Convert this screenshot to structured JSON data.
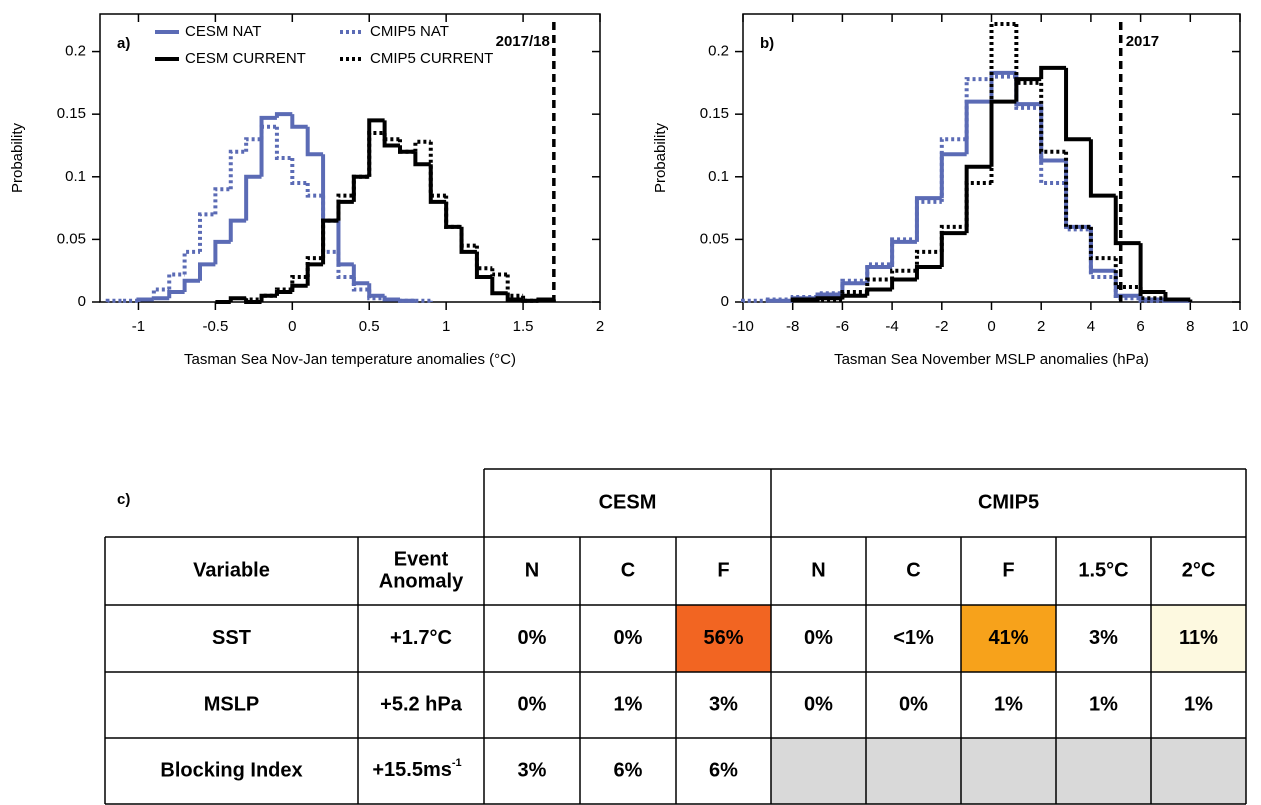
{
  "chart_data": [
    {
      "type": "histogram",
      "panel_label": "a)",
      "xlabel": "Tasman Sea Nov-Jan temperature anomalies (°C)",
      "ylabel": "Probability",
      "xlim": [
        -1.25,
        2
      ],
      "ylim": [
        0,
        0.23
      ],
      "xticks": [
        -1,
        -0.5,
        0,
        0.5,
        1,
        1.5,
        2
      ],
      "yticks": [
        0,
        0.05,
        0.1,
        0.15,
        0.2
      ],
      "legend": true,
      "event": {
        "value": 1.7,
        "label": "2017/18"
      },
      "series": [
        {
          "name": "CESM NAT",
          "color": "#5b6bb5",
          "linestyle": "solid",
          "bins": [
            -1.0,
            -0.9,
            -0.8,
            -0.7,
            -0.6,
            -0.5,
            -0.4,
            -0.3,
            -0.2,
            -0.1,
            0,
            0.1,
            0.2,
            0.3,
            0.4,
            0.5,
            0.6,
            0.7,
            0.8
          ],
          "values": [
            0.002,
            0.003,
            0.008,
            0.017,
            0.03,
            0.048,
            0.065,
            0.1,
            0.147,
            0.15,
            0.14,
            0.118,
            0.065,
            0.03,
            0.015,
            0.005,
            0.002,
            0.001
          ]
        },
        {
          "name": "CMIP5 NAT",
          "color": "#5b6bb5",
          "linestyle": "dotted",
          "bins": [
            -1.2,
            -1.1,
            -1.0,
            -0.9,
            -0.8,
            -0.7,
            -0.6,
            -0.5,
            -0.4,
            -0.3,
            -0.2,
            -0.1,
            0,
            0.1,
            0.2,
            0.3,
            0.4,
            0.5,
            0.6,
            0.7,
            0.8,
            0.9
          ],
          "values": [
            0.001,
            0.001,
            0.002,
            0.01,
            0.022,
            0.04,
            0.07,
            0.09,
            0.12,
            0.13,
            0.14,
            0.115,
            0.095,
            0.085,
            0.04,
            0.02,
            0.01,
            0.003,
            0.002,
            0.001,
            0.001
          ]
        },
        {
          "name": "CESM CURRENT",
          "color": "#000000",
          "linestyle": "solid",
          "bins": [
            -0.5,
            -0.4,
            -0.3,
            -0.2,
            -0.1,
            0,
            0.1,
            0.2,
            0.3,
            0.4,
            0.5,
            0.6,
            0.7,
            0.8,
            0.9,
            1.0,
            1.1,
            1.2,
            1.3,
            1.4,
            1.5,
            1.6,
            1.7
          ],
          "values": [
            0,
            0.003,
            0,
            0.005,
            0.008,
            0.013,
            0.03,
            0.065,
            0.08,
            0.1,
            0.145,
            0.125,
            0.12,
            0.11,
            0.08,
            0.06,
            0.04,
            0.02,
            0.007,
            0.002,
            0.001,
            0.002
          ]
        },
        {
          "name": "CMIP5 CURRENT",
          "color": "#000000",
          "linestyle": "dotted",
          "bins": [
            -0.3,
            -0.2,
            -0.1,
            0,
            0.1,
            0.2,
            0.3,
            0.4,
            0.5,
            0.6,
            0.7,
            0.8,
            0.9,
            1.0,
            1.1,
            1.2,
            1.3,
            1.4,
            1.5,
            1.6
          ],
          "values": [
            0.002,
            0.005,
            0.01,
            0.02,
            0.035,
            0.065,
            0.085,
            0.1,
            0.135,
            0.13,
            0.12,
            0.128,
            0.085,
            0.06,
            0.045,
            0.027,
            0.022,
            0.005,
            0.001
          ]
        }
      ]
    },
    {
      "type": "histogram",
      "panel_label": "b)",
      "xlabel": "Tasman Sea November MSLP anomalies (hPa)",
      "ylabel": "Probability",
      "xlim": [
        -10,
        10
      ],
      "ylim": [
        0,
        0.23
      ],
      "xticks": [
        -10,
        -8,
        -6,
        -4,
        -2,
        0,
        2,
        4,
        6,
        8,
        10
      ],
      "yticks": [
        0,
        0.05,
        0.1,
        0.15,
        0.2
      ],
      "legend": false,
      "event": {
        "value": 5.2,
        "label": "2017"
      },
      "series": [
        {
          "color": "#5b6bb5",
          "linestyle": "solid",
          "bins": [
            -9,
            -8,
            -7,
            -6,
            -5,
            -4,
            -3,
            -2,
            -1,
            0,
            1,
            2,
            3,
            4,
            5,
            6,
            7,
            8
          ],
          "values": [
            0.001,
            0.003,
            0.006,
            0.015,
            0.028,
            0.048,
            0.083,
            0.118,
            0.16,
            0.183,
            0.158,
            0.113,
            0.06,
            0.025,
            0.005,
            0.002,
            0.001
          ]
        },
        {
          "color": "#5b6bb5",
          "linestyle": "dotted",
          "bins": [
            -10,
            -9,
            -8,
            -7,
            -6,
            -5,
            -4,
            -3,
            -2,
            -1,
            0,
            1,
            2,
            3,
            4,
            5,
            6,
            7
          ],
          "values": [
            0.001,
            0.002,
            0.004,
            0.007,
            0.017,
            0.03,
            0.05,
            0.08,
            0.13,
            0.178,
            0.18,
            0.155,
            0.095,
            0.058,
            0.02,
            0.003,
            0.001
          ]
        },
        {
          "color": "#000000",
          "linestyle": "solid",
          "bins": [
            -8,
            -7,
            -6,
            -5,
            -4,
            -3,
            -2,
            -1,
            0,
            1,
            2,
            3,
            4,
            5,
            6,
            7,
            8
          ],
          "values": [
            0.002,
            0.003,
            0.005,
            0.01,
            0.018,
            0.028,
            0.055,
            0.108,
            0.16,
            0.178,
            0.187,
            0.13,
            0.085,
            0.047,
            0.008,
            0.002
          ]
        },
        {
          "color": "#000000",
          "linestyle": "dotted",
          "bins": [
            -7,
            -6,
            -5,
            -4,
            -3,
            -2,
            -1,
            0,
            1,
            2,
            3,
            4,
            5,
            6,
            7
          ],
          "values": [
            0.002,
            0.008,
            0.018,
            0.025,
            0.04,
            0.06,
            0.095,
            0.222,
            0.175,
            0.12,
            0.06,
            0.035,
            0.012,
            0.003
          ]
        }
      ]
    }
  ],
  "table": {
    "label": "c)",
    "row_headers": [
      "Variable",
      [
        "Event",
        "Anomaly"
      ]
    ],
    "groups": [
      {
        "name": "CESM",
        "columns": [
          "N",
          "C",
          "F"
        ]
      },
      {
        "name": "CMIP5",
        "columns": [
          "N",
          "C",
          "F",
          "1.5°C",
          "2°C"
        ]
      }
    ],
    "empty_fill": "#d9d9d9",
    "rows": [
      {
        "cells": [
          "SST",
          "+1.7°C",
          "0%",
          "0%",
          "56%",
          "0%",
          "<1%",
          "41%",
          "3%",
          "11%"
        ],
        "fills": [
          null,
          null,
          null,
          null,
          "#f26522",
          null,
          null,
          "#f7a21b",
          null,
          "#fdf9e0"
        ]
      },
      {
        "cells": [
          "MSLP",
          "+5.2 hPa",
          "0%",
          "1%",
          "3%",
          "0%",
          "0%",
          "1%",
          "1%",
          "1%"
        ],
        "fills": [
          null,
          null,
          null,
          null,
          null,
          null,
          null,
          null,
          null,
          null
        ]
      },
      {
        "cells": [
          "Blocking Index",
          {
            "text": "+15.5ms",
            "sup": "-1"
          },
          "3%",
          "6%",
          "6%"
        ],
        "fills": [
          null,
          null,
          null,
          null,
          null
        ]
      }
    ]
  }
}
